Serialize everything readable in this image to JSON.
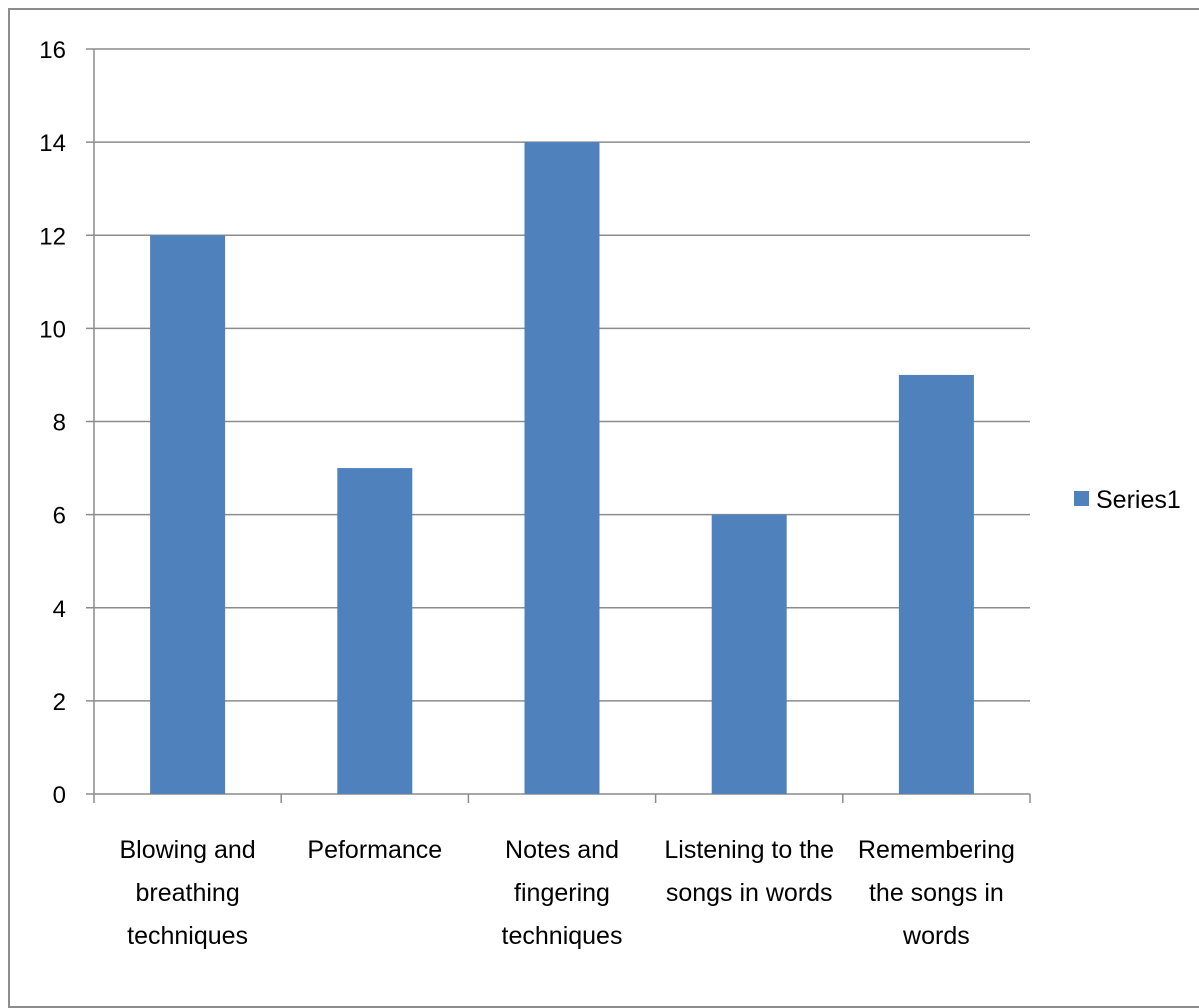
{
  "chart_data": {
    "type": "bar",
    "categories": [
      [
        "Blowing and",
        "breathing",
        "techniques"
      ],
      [
        "Peformance"
      ],
      [
        "Notes and",
        "fingering",
        "techniques"
      ],
      [
        "Listening to the",
        "songs in words"
      ],
      [
        "Remembering",
        "the songs in",
        "words"
      ]
    ],
    "series": [
      {
        "name": "Series1",
        "values": [
          12,
          7,
          14,
          6,
          9
        ],
        "color": "#4f81bd"
      }
    ],
    "ylim": [
      0,
      16
    ],
    "yticks": [
      0,
      2,
      4,
      6,
      8,
      10,
      12,
      14,
      16
    ],
    "grid": true,
    "legend_position": "right",
    "colors": {
      "gridline": "#8c8c8c",
      "axis": "#8c8c8c"
    }
  }
}
